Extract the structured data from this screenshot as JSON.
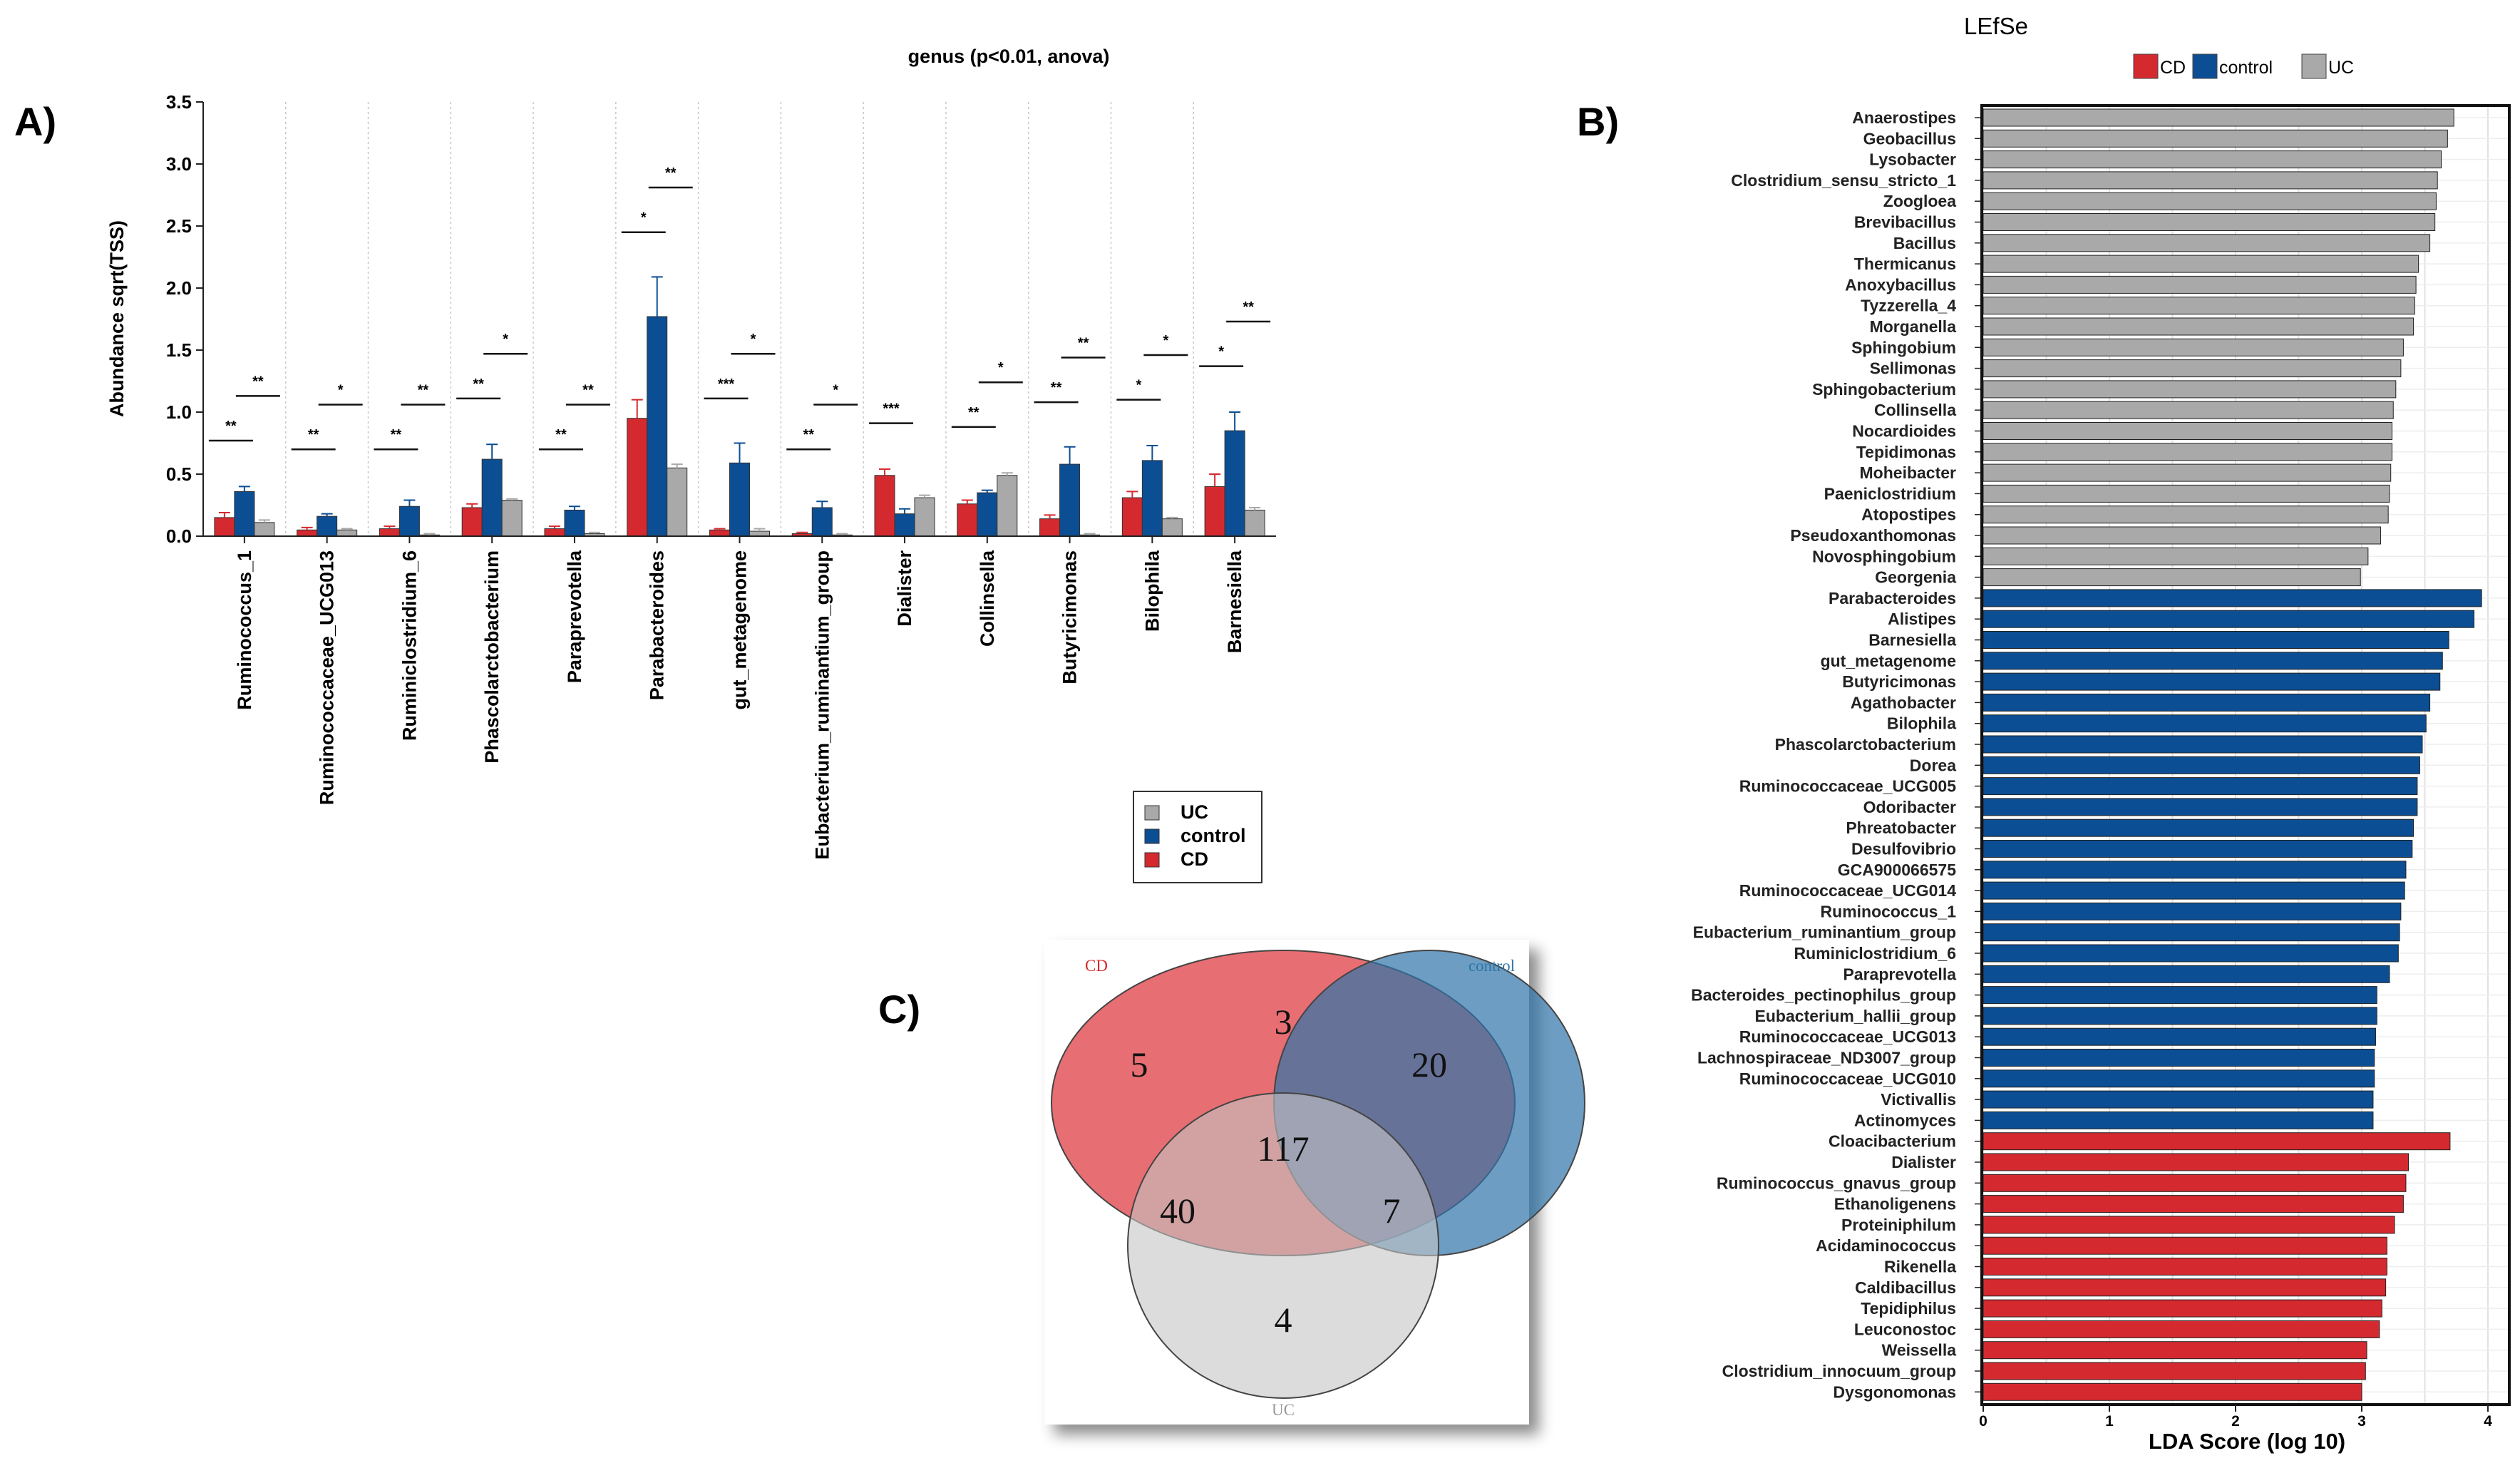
{
  "chart_data": [
    {
      "panel": "A)",
      "type": "bar",
      "title": "genus (p<0.01, anova)",
      "ylabel": "Abundance sqrt(TSS)",
      "xlabel": "",
      "ylim": [
        0,
        3.5
      ],
      "yticks": [
        "0.0",
        "0.5",
        "1.0",
        "1.5",
        "2.0",
        "2.5",
        "3.0",
        "3.5"
      ],
      "categories": [
        "Ruminococcus_1",
        "Ruminococcaceae_UCG013",
        "Ruminiclostridium_6",
        "Phascolarctobacterium",
        "Paraprevotella",
        "Parabacteroides",
        "gut_metagenome",
        "Eubacterium_ruminantium_group",
        "Dialister",
        "Collinsella",
        "Butyricimonas",
        "Bilophila",
        "Barnesiella"
      ],
      "series": [
        {
          "name": "CD",
          "color": "#d42a2f",
          "values": [
            0.15,
            0.05,
            0.06,
            0.23,
            0.06,
            0.95,
            0.05,
            0.02,
            0.49,
            0.26,
            0.14,
            0.31,
            0.4
          ],
          "errors": [
            0.04,
            0.02,
            0.02,
            0.03,
            0.02,
            0.15,
            0.01,
            0.01,
            0.05,
            0.03,
            0.03,
            0.05,
            0.1
          ]
        },
        {
          "name": "control",
          "color": "#0c4e93",
          "values": [
            0.36,
            0.16,
            0.24,
            0.62,
            0.21,
            1.77,
            0.59,
            0.23,
            0.18,
            0.35,
            0.58,
            0.61,
            0.85
          ],
          "errors": [
            0.04,
            0.02,
            0.05,
            0.12,
            0.03,
            0.32,
            0.16,
            0.05,
            0.04,
            0.02,
            0.14,
            0.12,
            0.15
          ]
        },
        {
          "name": "UC",
          "color": "#a9a9a9",
          "values": [
            0.11,
            0.05,
            0.01,
            0.29,
            0.02,
            0.55,
            0.04,
            0.01,
            0.31,
            0.49,
            0.01,
            0.14,
            0.21
          ],
          "errors": [
            0.02,
            0.01,
            0.01,
            0.01,
            0.01,
            0.03,
            0.02,
            0.01,
            0.02,
            0.02,
            0.01,
            0.01,
            0.02
          ]
        }
      ],
      "significance": [
        {
          "low": "**",
          "low_y": 0.77,
          "high": "**",
          "high_y": 1.13
        },
        {
          "low": "**",
          "low_y": 0.7,
          "high": "*",
          "high_y": 1.06
        },
        {
          "low": "**",
          "low_y": 0.7,
          "high": "**",
          "high_y": 1.06
        },
        {
          "low": "**",
          "low_y": 1.11,
          "high": "*",
          "high_y": 1.47
        },
        {
          "low": "**",
          "low_y": 0.7,
          "high": "**",
          "high_y": 1.06
        },
        {
          "low": "*",
          "low_y": 2.45,
          "high": "**",
          "high_y": 2.81
        },
        {
          "low": "***",
          "low_y": 1.11,
          "high": "*",
          "high_y": 1.47
        },
        {
          "low": "**",
          "low_y": 0.7,
          "high": "*",
          "high_y": 1.06
        },
        {
          "low": "***",
          "low_y": 0.91,
          "high": "",
          "high_y": null
        },
        {
          "low": "**",
          "low_y": 0.88,
          "high": "*",
          "high_y": 1.24
        },
        {
          "low": "**",
          "low_y": 1.08,
          "high": "**",
          "high_y": 1.44
        },
        {
          "low": "*",
          "low_y": 1.1,
          "high": "*",
          "high_y": 1.46
        },
        {
          "low": "*",
          "low_y": 1.37,
          "high": "**",
          "high_y": 1.73
        }
      ],
      "legend": {
        "position": "bottom-right",
        "items": [
          {
            "label": "UC",
            "color": "#a9a9a9"
          },
          {
            "label": "control",
            "color": "#0c4e93"
          },
          {
            "label": "CD",
            "color": "#d42a2f"
          }
        ]
      }
    },
    {
      "panel": "B)",
      "type": "bar",
      "orientation": "horizontal",
      "title": "LEfSe",
      "xlabel": "LDA Score (log 10)",
      "ylabel": "",
      "xlim": [
        0,
        4
      ],
      "xticks": [
        "0",
        "1",
        "2",
        "3",
        "4"
      ],
      "legend": {
        "position": "top",
        "items": [
          {
            "label": "CD",
            "color": "#d42a2f"
          },
          {
            "label": "control",
            "color": "#0c4e93"
          },
          {
            "label": "UC",
            "color": "#a9a9a9"
          }
        ]
      },
      "bars": [
        {
          "label": "Anaerostipes",
          "group": "UC",
          "value": 3.73
        },
        {
          "label": "Geobacillus",
          "group": "UC",
          "value": 3.68
        },
        {
          "label": "Lysobacter",
          "group": "UC",
          "value": 3.63
        },
        {
          "label": "Clostridium_sensu_stricto_1",
          "group": "UC",
          "value": 3.6
        },
        {
          "label": "Zoogloea",
          "group": "UC",
          "value": 3.59
        },
        {
          "label": "Brevibacillus",
          "group": "UC",
          "value": 3.58
        },
        {
          "label": "Bacillus",
          "group": "UC",
          "value": 3.54
        },
        {
          "label": "Thermicanus",
          "group": "UC",
          "value": 3.45
        },
        {
          "label": "Anoxybacillus",
          "group": "UC",
          "value": 3.43
        },
        {
          "label": "Tyzzerella_4",
          "group": "UC",
          "value": 3.42
        },
        {
          "label": "Morganella",
          "group": "UC",
          "value": 3.41
        },
        {
          "label": "Sphingobium",
          "group": "UC",
          "value": 3.33
        },
        {
          "label": "Sellimonas",
          "group": "UC",
          "value": 3.31
        },
        {
          "label": "Sphingobacterium",
          "group": "UC",
          "value": 3.27
        },
        {
          "label": "Collinsella",
          "group": "UC",
          "value": 3.25
        },
        {
          "label": "Nocardioides",
          "group": "UC",
          "value": 3.24
        },
        {
          "label": "Tepidimonas",
          "group": "UC",
          "value": 3.24
        },
        {
          "label": "Moheibacter",
          "group": "UC",
          "value": 3.23
        },
        {
          "label": "Paeniclostridium",
          "group": "UC",
          "value": 3.22
        },
        {
          "label": "Atopostipes",
          "group": "UC",
          "value": 3.21
        },
        {
          "label": "Pseudoxanthomonas",
          "group": "UC",
          "value": 3.15
        },
        {
          "label": "Novosphingobium",
          "group": "UC",
          "value": 3.05
        },
        {
          "label": "Georgenia",
          "group": "UC",
          "value": 2.99
        },
        {
          "label": "Parabacteroides",
          "group": "control",
          "value": 3.95
        },
        {
          "label": "Alistipes",
          "group": "control",
          "value": 3.89
        },
        {
          "label": "Barnesiella",
          "group": "control",
          "value": 3.69
        },
        {
          "label": "gut_metagenome",
          "group": "control",
          "value": 3.64
        },
        {
          "label": "Butyricimonas",
          "group": "control",
          "value": 3.62
        },
        {
          "label": "Agathobacter",
          "group": "control",
          "value": 3.54
        },
        {
          "label": "Bilophila",
          "group": "control",
          "value": 3.51
        },
        {
          "label": "Phascolarctobacterium",
          "group": "control",
          "value": 3.48
        },
        {
          "label": "Dorea",
          "group": "control",
          "value": 3.46
        },
        {
          "label": "Ruminococcaceae_UCG005",
          "group": "control",
          "value": 3.44
        },
        {
          "label": "Odoribacter",
          "group": "control",
          "value": 3.44
        },
        {
          "label": "Phreatobacter",
          "group": "control",
          "value": 3.41
        },
        {
          "label": "Desulfovibrio",
          "group": "control",
          "value": 3.4
        },
        {
          "label": "GCA900066575",
          "group": "control",
          "value": 3.35
        },
        {
          "label": "Ruminococcaceae_UCG014",
          "group": "control",
          "value": 3.34
        },
        {
          "label": "Ruminococcus_1",
          "group": "control",
          "value": 3.31
        },
        {
          "label": "Eubacterium_ruminantium_group",
          "group": "control",
          "value": 3.3
        },
        {
          "label": "Ruminiclostridium_6",
          "group": "control",
          "value": 3.29
        },
        {
          "label": "Paraprevotella",
          "group": "control",
          "value": 3.22
        },
        {
          "label": "Bacteroides_pectinophilus_group",
          "group": "control",
          "value": 3.12
        },
        {
          "label": "Eubacterium_hallii_group",
          "group": "control",
          "value": 3.12
        },
        {
          "label": "Ruminococcaceae_UCG013",
          "group": "control",
          "value": 3.11
        },
        {
          "label": "Lachnospiraceae_ND3007_group",
          "group": "control",
          "value": 3.1
        },
        {
          "label": "Ruminococcaceae_UCG010",
          "group": "control",
          "value": 3.1
        },
        {
          "label": "Victivallis",
          "group": "control",
          "value": 3.09
        },
        {
          "label": "Actinomyces",
          "group": "control",
          "value": 3.09
        },
        {
          "label": "Cloacibacterium",
          "group": "CD",
          "value": 3.7
        },
        {
          "label": "Dialister",
          "group": "CD",
          "value": 3.37
        },
        {
          "label": "Ruminococcus_gnavus_group",
          "group": "CD",
          "value": 3.35
        },
        {
          "label": "Ethanoligenens",
          "group": "CD",
          "value": 3.33
        },
        {
          "label": "Proteiniphilum",
          "group": "CD",
          "value": 3.26
        },
        {
          "label": "Acidaminococcus",
          "group": "CD",
          "value": 3.2
        },
        {
          "label": "Rikenella",
          "group": "CD",
          "value": 3.2
        },
        {
          "label": "Caldibacillus",
          "group": "CD",
          "value": 3.19
        },
        {
          "label": "Tepidiphilus",
          "group": "CD",
          "value": 3.16
        },
        {
          "label": "Leuconostoc",
          "group": "CD",
          "value": 3.14
        },
        {
          "label": "Weissella",
          "group": "CD",
          "value": 3.04
        },
        {
          "label": "Clostridium_innocuum_group",
          "group": "CD",
          "value": 3.03
        },
        {
          "label": "Dysgonomonas",
          "group": "CD",
          "value": 3.0
        }
      ]
    },
    {
      "panel": "C)",
      "type": "venn",
      "sets": [
        {
          "name": "CD",
          "color": "#e0454a"
        },
        {
          "name": "control",
          "color": "#2f74a8"
        },
        {
          "name": "UC",
          "color": "#c4c4c4"
        }
      ],
      "regions": {
        "CD_only": "5",
        "control_only": "20",
        "UC_only": "4",
        "CD_control": "3",
        "CD_UC": "40",
        "control_UC": "7",
        "all": "117"
      }
    }
  ]
}
